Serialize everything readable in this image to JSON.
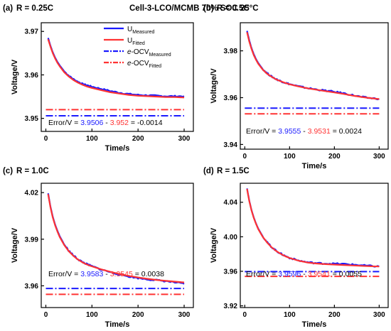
{
  "figure": {
    "subtitle": "Cell-3-LCO/MCMB 70% SOC 25°C"
  },
  "colors": {
    "measured": "#1a1aff",
    "fitted": "#ff3333",
    "text": "#000000"
  },
  "chart_data": [
    {
      "type": "line",
      "label": "(a)",
      "title": "R = 0.25C",
      "xlabel": "Time/s",
      "ylabel": "Voltage/V",
      "xlim": [
        -10,
        320
      ],
      "ylim": [
        3.947,
        3.972
      ],
      "xticks": [
        0,
        100,
        200,
        300
      ],
      "xtick_labels": [
        "0",
        "100",
        "200",
        "300"
      ],
      "yticks": [
        3.95,
        3.96,
        3.97
      ],
      "ytick_labels": [
        "3.95",
        "3.96",
        "3.97"
      ],
      "legend": {
        "placement": "top-right",
        "entries": [
          {
            "style": "solid",
            "color": "measured",
            "main": "U",
            "sub": "Measured",
            "italic": ""
          },
          {
            "style": "solid",
            "color": "fitted",
            "main": "U",
            "sub": "Fitted",
            "italic": ""
          },
          {
            "style": "dashdot",
            "color": "measured",
            "italic": "e",
            "main": "-OCV",
            "sub": "Measured"
          },
          {
            "style": "dashdot",
            "color": "fitted",
            "italic": "e",
            "main": "-OCV",
            "sub": "Fitted"
          }
        ]
      },
      "series": [
        {
          "name": "U Measured",
          "color": "measured",
          "noisy": true,
          "x": [
            5,
            10,
            15,
            20,
            25,
            30,
            40,
            50,
            60,
            70,
            80,
            90,
            100,
            120,
            140,
            160,
            180,
            200,
            220,
            240,
            260,
            280,
            300
          ],
          "y": [
            3.9685,
            3.9667,
            3.9652,
            3.964,
            3.963,
            3.9622,
            3.9608,
            3.9598,
            3.959,
            3.9584,
            3.9579,
            3.9576,
            3.9573,
            3.9568,
            3.9563,
            3.9559,
            3.9556,
            3.9554,
            3.9553,
            3.9552,
            3.9551,
            3.9551,
            3.9551
          ]
        },
        {
          "name": "U Fitted",
          "color": "fitted",
          "x": [
            5,
            10,
            15,
            20,
            25,
            30,
            40,
            50,
            60,
            70,
            80,
            90,
            100,
            120,
            140,
            160,
            180,
            200,
            220,
            240,
            260,
            280,
            300
          ],
          "y": [
            3.9682,
            3.9665,
            3.965,
            3.9638,
            3.9628,
            3.962,
            3.9606,
            3.9596,
            3.9588,
            3.9582,
            3.9577,
            3.9573,
            3.957,
            3.9565,
            3.956,
            3.9557,
            3.9554,
            3.9552,
            3.9551,
            3.955,
            3.9549,
            3.9549,
            3.9548
          ]
        },
        {
          "name": "e-OCV Measured",
          "color": "measured",
          "dashdot": true,
          "x": [
            0,
            300
          ],
          "y": [
            3.9506,
            3.9506
          ]
        },
        {
          "name": "e-OCV Fitted",
          "color": "fitted",
          "dashdot": true,
          "x": [
            0,
            300
          ],
          "y": [
            3.952,
            3.952
          ]
        }
      ],
      "error": {
        "prefix": "Error/V = ",
        "measured": "3.9506",
        "minus": " - ",
        "fitted": "3.952",
        "result": " = -0.0014"
      }
    },
    {
      "type": "line",
      "label": "(b)",
      "title": "R = 0.5C",
      "xlabel": "Time/s",
      "ylabel": "Voltage/V",
      "xlim": [
        -10,
        320
      ],
      "ylim": [
        3.938,
        3.992
      ],
      "xticks": [
        0,
        100,
        200,
        300
      ],
      "xtick_labels": [
        "0",
        "100",
        "200",
        "300"
      ],
      "yticks": [
        3.94,
        3.96,
        3.98
      ],
      "ytick_labels": [
        "3.94",
        "3.96",
        "3.98"
      ],
      "series": [
        {
          "name": "U Measured",
          "color": "measured",
          "noisy": true,
          "x": [
            5,
            10,
            15,
            20,
            25,
            30,
            40,
            50,
            60,
            70,
            80,
            90,
            100,
            120,
            140,
            160,
            180,
            200,
            220,
            240,
            260,
            280,
            300
          ],
          "y": [
            3.9885,
            3.9845,
            3.9812,
            3.9786,
            3.9765,
            3.9748,
            3.9722,
            3.9704,
            3.969,
            3.9679,
            3.9671,
            3.9664,
            3.9658,
            3.9648,
            3.9641,
            3.9635,
            3.963,
            3.9625,
            3.9619,
            3.9611,
            3.9603,
            3.9598,
            3.9595
          ]
        },
        {
          "name": "U Fitted",
          "color": "fitted",
          "x": [
            5,
            10,
            15,
            20,
            25,
            30,
            40,
            50,
            60,
            70,
            80,
            90,
            100,
            120,
            140,
            160,
            180,
            200,
            220,
            240,
            260,
            280,
            300
          ],
          "y": [
            3.988,
            3.984,
            3.9808,
            3.9782,
            3.9762,
            3.9745,
            3.972,
            3.9702,
            3.9689,
            3.9678,
            3.967,
            3.9663,
            3.9657,
            3.9648,
            3.964,
            3.9634,
            3.9628,
            3.9622,
            3.9616,
            3.9609,
            3.9603,
            3.9598,
            3.9594
          ]
        },
        {
          "name": "e-OCV Measured",
          "color": "measured",
          "dashdot": true,
          "x": [
            0,
            300
          ],
          "y": [
            3.9555,
            3.9555
          ]
        },
        {
          "name": "e-OCV Fitted",
          "color": "fitted",
          "dashdot": true,
          "x": [
            0,
            300
          ],
          "y": [
            3.9531,
            3.9531
          ]
        }
      ],
      "error": {
        "prefix": "Error/V = ",
        "measured": "3.9555",
        "minus": " - ",
        "fitted": "3.9531",
        "result": " = 0.0024"
      }
    },
    {
      "type": "line",
      "label": "(c)",
      "title": "R = 1.0C",
      "xlabel": "Time/s",
      "ylabel": "Voltage/V",
      "xlim": [
        -10,
        320
      ],
      "ylim": [
        3.946,
        4.026
      ],
      "xticks": [
        0,
        100,
        200,
        300
      ],
      "xtick_labels": [
        "0",
        "100",
        "200",
        "300"
      ],
      "yticks": [
        3.96,
        3.99,
        4.02
      ],
      "ytick_labels": [
        "3.96",
        "3.99",
        "4.02"
      ],
      "series": [
        {
          "name": "U Measured",
          "color": "measured",
          "noisy": true,
          "x": [
            5,
            10,
            15,
            20,
            25,
            30,
            40,
            50,
            60,
            70,
            80,
            90,
            100,
            120,
            140,
            160,
            180,
            200,
            220,
            240,
            260,
            280,
            300
          ],
          "y": [
            4.0195,
            4.011,
            4.0045,
            3.9995,
            3.9955,
            3.992,
            3.9865,
            3.9825,
            3.9795,
            3.977,
            3.9752,
            3.9738,
            3.9726,
            3.9705,
            3.9688,
            3.9673,
            3.966,
            3.965,
            3.9642,
            3.9636,
            3.963,
            3.9622,
            3.9612
          ]
        },
        {
          "name": "U Fitted",
          "color": "fitted",
          "x": [
            5,
            10,
            15,
            20,
            25,
            30,
            40,
            50,
            60,
            70,
            80,
            90,
            100,
            120,
            140,
            160,
            180,
            200,
            220,
            240,
            260,
            280,
            300
          ],
          "y": [
            4.019,
            4.0105,
            4.004,
            3.999,
            3.995,
            3.9915,
            3.9862,
            3.9822,
            3.9792,
            3.9768,
            3.975,
            3.9736,
            3.9725,
            3.9706,
            3.969,
            3.9676,
            3.9664,
            3.9654,
            3.9645,
            3.9638,
            3.9632,
            3.9627,
            3.9622
          ]
        },
        {
          "name": "e-OCV Measured",
          "color": "measured",
          "dashdot": true,
          "x": [
            0,
            300
          ],
          "y": [
            3.9583,
            3.9583
          ]
        },
        {
          "name": "e-OCV Fitted",
          "color": "fitted",
          "dashdot": true,
          "x": [
            0,
            300
          ],
          "y": [
            3.9545,
            3.9545
          ]
        }
      ],
      "error": {
        "prefix": "Error/V = ",
        "measured": "3.9583",
        "minus": " - ",
        "fitted": "3.9545",
        "result": " = 0.0038"
      }
    },
    {
      "type": "line",
      "label": "(d)",
      "title": "R = 1.5C",
      "xlabel": "Time/s",
      "ylabel": "Voltage/V",
      "xlim": [
        -10,
        320
      ],
      "ylim": [
        3.918,
        4.062
      ],
      "xticks": [
        0,
        100,
        200,
        300
      ],
      "xtick_labels": [
        "0",
        "100",
        "200",
        "300"
      ],
      "yticks": [
        3.92,
        3.96,
        4.0,
        4.04
      ],
      "ytick_labels": [
        "3.92",
        "3.96",
        "4.00",
        "4.04"
      ],
      "series": [
        {
          "name": "U Measured",
          "color": "measured",
          "noisy": true,
          "x": [
            5,
            10,
            15,
            20,
            25,
            30,
            40,
            50,
            60,
            70,
            80,
            90,
            100,
            120,
            140,
            160,
            180,
            200,
            220,
            240,
            260,
            280,
            300
          ],
          "y": [
            4.056,
            4.042,
            4.031,
            4.0225,
            4.0155,
            4.0095,
            4.0005,
            3.9935,
            3.988,
            3.9838,
            3.9805,
            3.9778,
            3.9756,
            3.9725,
            3.9705,
            3.9695,
            3.969,
            3.9688,
            3.9685,
            3.9678,
            3.967,
            3.9662,
            3.9655
          ]
        },
        {
          "name": "U Fitted",
          "color": "fitted",
          "x": [
            5,
            10,
            15,
            20,
            25,
            30,
            40,
            50,
            60,
            70,
            80,
            90,
            100,
            120,
            140,
            160,
            180,
            200,
            220,
            240,
            260,
            280,
            300
          ],
          "y": [
            4.0555,
            4.0415,
            4.0305,
            4.022,
            4.015,
            4.009,
            4.0,
            3.9932,
            3.9878,
            3.9836,
            3.9803,
            3.9776,
            3.9754,
            3.9723,
            3.9702,
            3.969,
            3.9683,
            3.9678,
            3.9673,
            3.9668,
            3.9663,
            3.9659,
            3.9656
          ]
        },
        {
          "name": "e-OCV Measured",
          "color": "measured",
          "dashdot": true,
          "x": [
            0,
            300
          ],
          "y": [
            3.9596,
            3.9596
          ]
        },
        {
          "name": "e-OCV Fitted",
          "color": "fitted",
          "dashdot": true,
          "x": [
            0,
            300
          ],
          "y": [
            3.9541,
            3.9541
          ]
        }
      ],
      "error": {
        "prefix": "Error/V = ",
        "measured": "3.9596",
        "minus": " - ",
        "fitted": "3.9541",
        "result": " = 0.0055"
      }
    }
  ]
}
